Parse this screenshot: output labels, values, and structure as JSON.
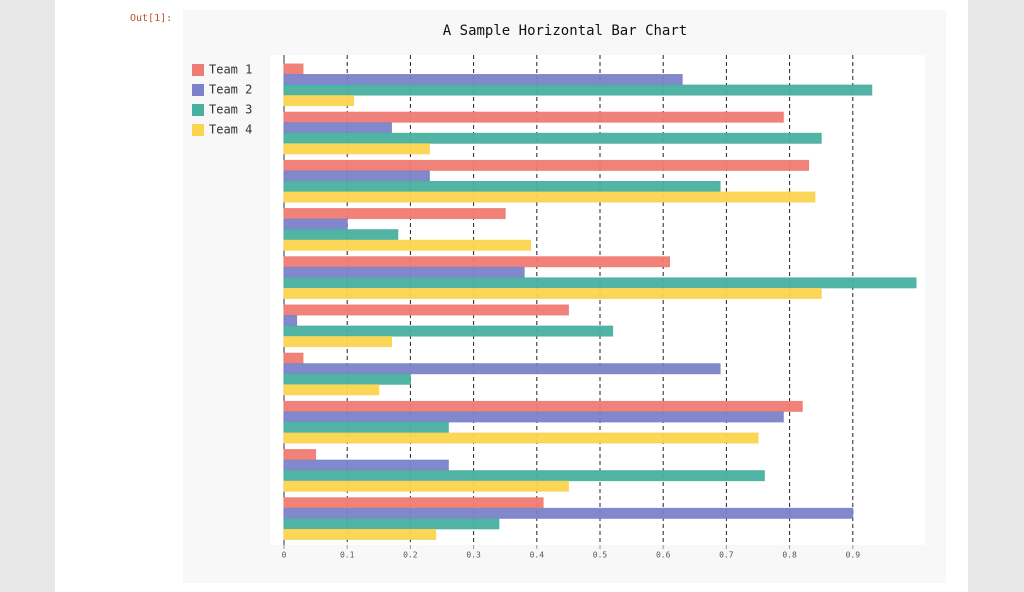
{
  "prompt": "Out[1]:",
  "chart_data": {
    "type": "hbar",
    "title": "A Sample Horizontal Bar Chart",
    "categories": [
      null,
      null,
      null,
      null,
      null,
      null,
      null,
      null,
      null,
      null
    ],
    "series": [
      {
        "name": "Team 1",
        "color": "#ef7b72",
        "values": [
          0.03,
          0.79,
          0.83,
          0.35,
          0.61,
          0.45,
          0.03,
          0.82,
          0.05,
          0.41
        ]
      },
      {
        "name": "Team 2",
        "color": "#7b82c9",
        "values": [
          0.63,
          0.17,
          0.23,
          0.1,
          0.38,
          0.02,
          0.69,
          0.79,
          0.26,
          0.9
        ]
      },
      {
        "name": "Team 3",
        "color": "#48b0a0",
        "values": [
          0.93,
          0.85,
          0.69,
          0.18,
          1.0,
          0.52,
          0.2,
          0.26,
          0.76,
          0.34
        ]
      },
      {
        "name": "Team 4",
        "color": "#fbd44e",
        "values": [
          0.11,
          0.23,
          0.84,
          0.39,
          0.85,
          0.17,
          0.15,
          0.75,
          0.45,
          0.24
        ]
      }
    ],
    "xlim": [
      0,
      1.0
    ],
    "xticks": [
      0,
      0.1,
      0.2,
      0.3,
      0.4,
      0.5,
      0.6,
      0.7,
      0.8,
      0.9
    ],
    "grid": true,
    "legend": "left"
  }
}
